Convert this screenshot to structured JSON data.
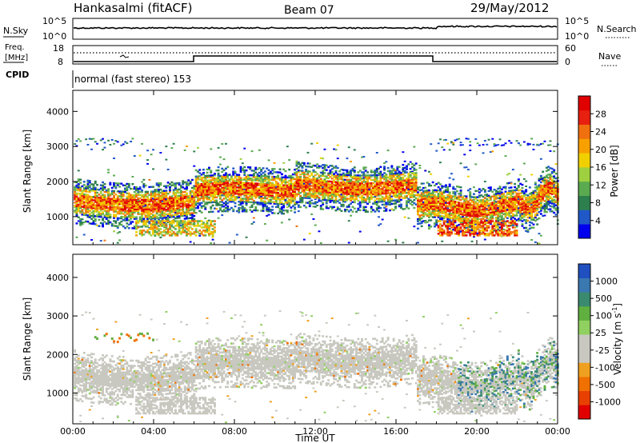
{
  "header": {
    "station": "Hankasalmi (fitACF)",
    "beam": "Beam 07",
    "date": "29/May/2012"
  },
  "top_panels": {
    "nsky_label": "N.Sky",
    "nsearch_label": "N.Search",
    "nsky_ticks": [
      "10^5",
      "10^0"
    ],
    "nsearch_ticks": [
      "10^5",
      "10^0"
    ],
    "freq_label_line1": "Freq.",
    "freq_label_line2": "[MHz]",
    "freq_ticks": [
      "18",
      "8"
    ],
    "nave_label": "Nave",
    "nave_ticks": [
      "60",
      "0"
    ],
    "cpid_label": "CPID",
    "cpid_text": "normal (fast stereo) 153"
  },
  "colorbars": {
    "power": {
      "label": "Power [dB]",
      "ticks": [
        "28",
        "24",
        "20",
        "16",
        "12",
        "8",
        "4"
      ],
      "colors": [
        "#0000ee",
        "#2058c8",
        "#2e7f4e",
        "#5aaa50",
        "#9ed040",
        "#f0d000",
        "#f8a000",
        "#f07010",
        "#e82010",
        "#e00000"
      ]
    },
    "velocity": {
      "label_main": "Velocity  [m s",
      "label_sup": "-1",
      "label_end": "]",
      "ticks": [
        "1000",
        "500",
        "100",
        "25",
        "-25",
        "-100",
        "-500",
        "-1000"
      ],
      "colors": [
        "#2050c0",
        "#3a78b0",
        "#3a8a70",
        "#60b040",
        "#90d060",
        "#c8c8c0",
        "#c8c8c0",
        "#f0a020",
        "#f07000",
        "#e84000",
        "#e00000"
      ]
    }
  },
  "chart_data": [
    {
      "type": "heatmap",
      "name": "power",
      "ylabel": "Slant Range [km]",
      "yticks": [
        "1000",
        "2000",
        "3000",
        "4000"
      ],
      "ylim": [
        200,
        4600
      ],
      "xlim": [
        0,
        24
      ],
      "xticks": [
        "00:00",
        "04:00",
        "08:00",
        "12:00",
        "16:00",
        "20:00",
        "00:00"
      ],
      "xlabel": "Time UT",
      "bands": [
        {
          "t": [
            0,
            6
          ],
          "r": [
            1200,
            1600
          ],
          "level": "high"
        },
        {
          "t": [
            6,
            11
          ],
          "r": [
            1600,
            1950
          ],
          "level": "high"
        },
        {
          "t": [
            11,
            17
          ],
          "r": [
            1700,
            2050
          ],
          "level": "mid"
        },
        {
          "t": [
            17,
            22
          ],
          "r": [
            1100,
            1500
          ],
          "level": "high"
        },
        {
          "t": [
            0,
            24
          ],
          "r": [
            800,
            2400
          ],
          "level": "low"
        },
        {
          "t": [
            18,
            21
          ],
          "r": [
            500,
            800
          ],
          "level": "high"
        }
      ]
    },
    {
      "type": "heatmap",
      "name": "velocity",
      "ylabel": "Slant Range [km]",
      "yticks": [
        "1000",
        "2000",
        "3000",
        "4000"
      ],
      "ylim": [
        200,
        4600
      ],
      "xlim": [
        0,
        24
      ],
      "xticks": [
        "00:00",
        "04:00",
        "08:00",
        "12:00",
        "16:00",
        "20:00",
        "00:00"
      ],
      "xlabel": "Time UT"
    }
  ]
}
